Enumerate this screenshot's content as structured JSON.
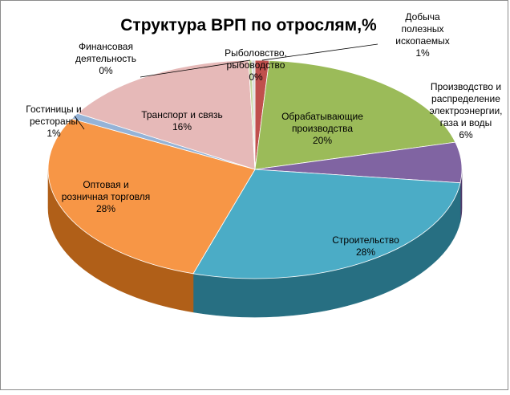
{
  "chart_data": {
    "type": "pie",
    "title": "Структура ВРП по отрослям,%",
    "slices": [
      {
        "key": "dobycha",
        "label_lines": [
          "Добыча",
          "полезных",
          "ископаемых"
        ],
        "value_label": "1%",
        "value": 1.1,
        "color": "#c0504d",
        "dark": "#7d2f2d"
      },
      {
        "key": "obrabat",
        "label_lines": [
          "Обрабатывающие",
          "производства"
        ],
        "value_label": "20%",
        "value": 20,
        "color": "#9bbb59",
        "dark": "#5f7a30"
      },
      {
        "key": "energo",
        "label_lines": [
          "Производство и",
          "распределение",
          "электроэнергии,",
          "газа и воды"
        ],
        "value_label": "6%",
        "value": 6,
        "color": "#8064a2",
        "dark": "#4f3b6a"
      },
      {
        "key": "stroit",
        "label_lines": [
          "Строительство"
        ],
        "value_label": "28%",
        "value": 28,
        "color": "#4bacc6",
        "dark": "#276f82"
      },
      {
        "key": "torgovlya",
        "label_lines": [
          "Оптовая и",
          "розничная торговля"
        ],
        "value_label": "28%",
        "value": 28,
        "color": "#f79646",
        "dark": "#b05f18"
      },
      {
        "key": "gostinitsy",
        "label_lines": [
          "Гостиницы и",
          "рестораны"
        ],
        "value_label": "1%",
        "value": 0.9,
        "color": "#95b3d7",
        "dark": "#5a7a9f"
      },
      {
        "key": "transport",
        "label_lines": [
          "Транспорт и связь"
        ],
        "value_label": "16%",
        "value": 16,
        "color": "#e6b9b8",
        "dark": "#a87675"
      },
      {
        "key": "finans",
        "label_lines": [
          "Финансовая",
          "деятельность"
        ],
        "value_label": "0%",
        "value": 0.25,
        "color": "#c3d69b",
        "dark": "#7f9257"
      },
      {
        "key": "rybolov",
        "label_lines": [
          "Рыболовство,",
          "рыбоводство"
        ],
        "value_label": "0%",
        "value": 0.25,
        "color": "#d9d9d9",
        "dark": "#8f8f8f"
      }
    ]
  }
}
